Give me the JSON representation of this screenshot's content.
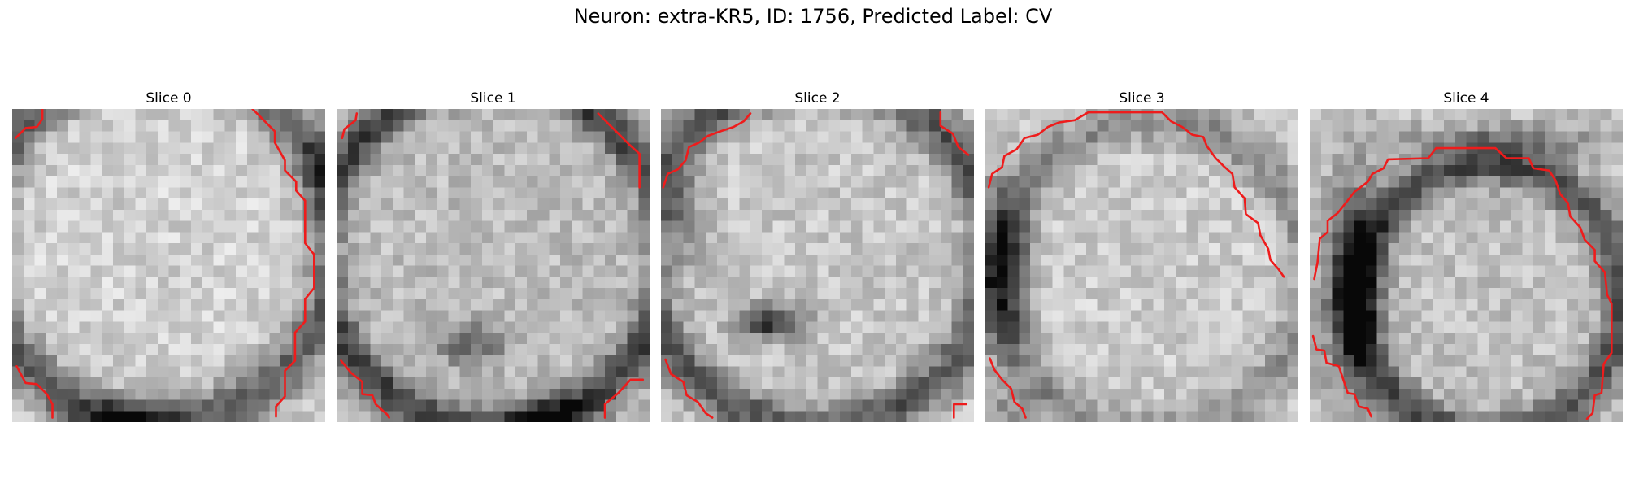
{
  "figure": {
    "title": "Neuron: extra-KR5, ID: 1756, Predicted Label: CV"
  },
  "contour_color": "#ee1c1c",
  "panels": [
    {
      "title": "Slice 0"
    },
    {
      "title": "Slice 1"
    },
    {
      "title": "Slice 2"
    },
    {
      "title": "Slice 3"
    },
    {
      "title": "Slice 4"
    }
  ]
}
